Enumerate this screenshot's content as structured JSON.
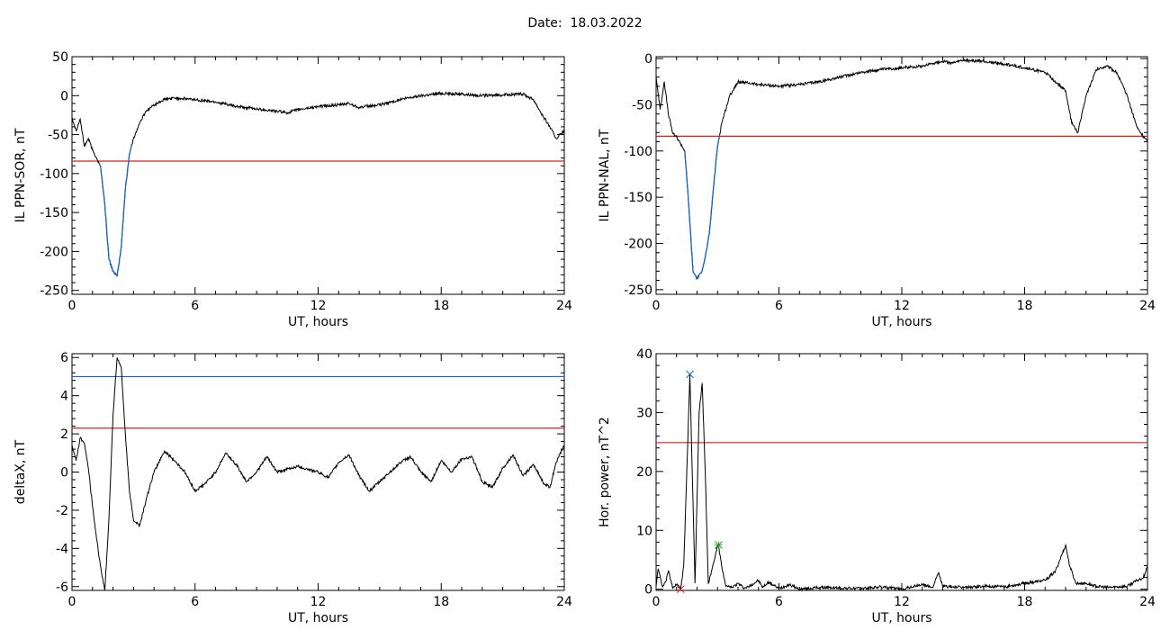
{
  "page": {
    "date_label": "Date:  18.03.2022"
  },
  "colors": {
    "data": "#000000",
    "highlight": "#1565c0",
    "threshold_red": "#e0201b",
    "threshold_blue": "#1565c0",
    "peak_green": "#22a022"
  },
  "chart_data": [
    {
      "type": "line",
      "id": "sor",
      "xlabel": "UT, hours",
      "ylabel": "IL PPN-SOR, nT",
      "xlim": [
        0,
        24
      ],
      "ylim": [
        -255,
        50
      ],
      "xticks": [
        0,
        6,
        12,
        18,
        24
      ],
      "yticks": [
        -250,
        -200,
        -150,
        -100,
        -50,
        0,
        50
      ],
      "thresholds": [
        {
          "y": -84,
          "color": "red"
        }
      ],
      "highlight_range": [
        1.3,
        2.9
      ],
      "series": [
        {
          "x": [
            0,
            0.2,
            0.4,
            0.6,
            0.8,
            1.0,
            1.2,
            1.4,
            1.6,
            1.8,
            2.0,
            2.2,
            2.4,
            2.6,
            2.8,
            3.0,
            3.3,
            3.6,
            4.0,
            4.5,
            5.0,
            6.0,
            7.0,
            8.0,
            9.0,
            10.0,
            10.5,
            11.0,
            12.0,
            13.0,
            13.5,
            14.0,
            15.0,
            16.0,
            17.0,
            18.0,
            19.0,
            20.0,
            21.0,
            22.0,
            22.5,
            23.0,
            23.3,
            23.6,
            24.0
          ],
          "y": [
            -28,
            -45,
            -30,
            -65,
            -55,
            -70,
            -80,
            -92,
            -140,
            -210,
            -225,
            -232,
            -195,
            -120,
            -75,
            -55,
            -35,
            -20,
            -12,
            -5,
            -3,
            -5,
            -8,
            -14,
            -17,
            -20,
            -22,
            -18,
            -14,
            -12,
            -10,
            -15,
            -12,
            -5,
            0,
            3,
            2,
            0,
            1,
            2,
            -5,
            -28,
            -40,
            -55,
            -45
          ]
        }
      ]
    },
    {
      "type": "line",
      "id": "nal",
      "xlabel": "UT, hours",
      "ylabel": "IL PPN-NAL, nT",
      "xlim": [
        0,
        24
      ],
      "ylim": [
        -255,
        2
      ],
      "xticks": [
        0,
        6,
        12,
        18,
        24
      ],
      "yticks": [
        -250,
        -200,
        -150,
        -100,
        -50,
        0
      ],
      "thresholds": [
        {
          "y": -84,
          "color": "red"
        }
      ],
      "highlight_range": [
        1.4,
        3.1
      ],
      "series": [
        {
          "x": [
            0,
            0.2,
            0.4,
            0.6,
            0.8,
            1.0,
            1.2,
            1.4,
            1.6,
            1.8,
            2.0,
            2.2,
            2.4,
            2.6,
            2.8,
            3.0,
            3.2,
            3.6,
            4.0,
            5.0,
            6.0,
            7.0,
            8.0,
            9.0,
            10.0,
            11.0,
            12.0,
            13.0,
            13.5,
            14.0,
            14.5,
            15.0,
            16.0,
            17.0,
            18.0,
            19.0,
            20.0,
            20.3,
            20.6,
            21.0,
            21.5,
            22.0,
            22.5,
            23.0,
            23.5,
            24.0
          ],
          "y": [
            -20,
            -55,
            -25,
            -60,
            -80,
            -85,
            -92,
            -100,
            -160,
            -230,
            -238,
            -232,
            -215,
            -190,
            -140,
            -95,
            -70,
            -40,
            -25,
            -28,
            -30,
            -28,
            -25,
            -20,
            -15,
            -12,
            -10,
            -8,
            -5,
            -3,
            -5,
            -2,
            -3,
            -6,
            -10,
            -15,
            -35,
            -70,
            -80,
            -40,
            -12,
            -8,
            -15,
            -40,
            -75,
            -90
          ]
        }
      ]
    },
    {
      "type": "line",
      "id": "deltax",
      "xlabel": "UT, hours",
      "ylabel": "deltaX, nT",
      "xlim": [
        0,
        24
      ],
      "ylim": [
        -6.2,
        6.2
      ],
      "xticks": [
        0,
        6,
        12,
        18,
        24
      ],
      "yticks": [
        -6,
        -4,
        -2,
        0,
        2,
        4,
        6
      ],
      "thresholds": [
        {
          "y": 5.0,
          "color": "blue"
        },
        {
          "y": 2.3,
          "color": "red"
        }
      ],
      "series": [
        {
          "x": [
            0,
            0.2,
            0.4,
            0.6,
            0.8,
            1.0,
            1.2,
            1.4,
            1.6,
            1.8,
            2.0,
            2.2,
            2.4,
            2.6,
            2.8,
            3.0,
            3.3,
            3.6,
            4.0,
            4.5,
            5.0,
            5.5,
            6.0,
            6.5,
            7.0,
            7.5,
            8.0,
            8.5,
            9.0,
            9.5,
            10.0,
            11.0,
            12.0,
            12.5,
            13.0,
            13.5,
            14.0,
            14.5,
            15.0,
            16.0,
            16.5,
            17.0,
            17.5,
            18.0,
            18.5,
            19.0,
            19.5,
            20.0,
            20.5,
            21.0,
            21.5,
            22.0,
            22.5,
            23.0,
            23.3,
            23.6,
            24.0
          ],
          "y": [
            1.4,
            0.6,
            1.8,
            1.5,
            0.2,
            -1.8,
            -3.5,
            -5.0,
            -6.2,
            -2.5,
            3.0,
            6.0,
            5.5,
            2.0,
            -1.0,
            -2.5,
            -2.8,
            -1.5,
            0.0,
            1.1,
            0.6,
            0.0,
            -1.0,
            -0.6,
            0.0,
            1.0,
            0.4,
            -0.5,
            0.0,
            0.8,
            0.0,
            0.3,
            0.0,
            -0.3,
            0.5,
            0.9,
            -0.2,
            -1.0,
            -0.5,
            0.5,
            0.8,
            0.0,
            -0.5,
            0.6,
            0.0,
            0.7,
            0.8,
            -0.5,
            -0.8,
            0.2,
            0.9,
            -0.2,
            0.4,
            -0.6,
            -0.8,
            0.5,
            1.4
          ]
        }
      ]
    },
    {
      "type": "line",
      "id": "power",
      "xlabel": "UT, hours",
      "ylabel": "Hor. power, nT^2",
      "xlim": [
        0,
        24
      ],
      "ylim": [
        -0.2,
        40
      ],
      "xticks": [
        0,
        6,
        12,
        18,
        24
      ],
      "yticks": [
        0,
        10,
        20,
        30,
        40
      ],
      "thresholds": [
        {
          "y": 24.9,
          "color": "red"
        }
      ],
      "markers": [
        {
          "x": 1.65,
          "y": 36.5,
          "symbol": "x",
          "color": "blue"
        },
        {
          "x": 3.05,
          "y": 7.5,
          "symbol": "star",
          "color": "green"
        },
        {
          "x": 1.2,
          "y": 0.0,
          "symbol": "x",
          "color": "red"
        }
      ],
      "series": [
        {
          "x": [
            0,
            0.1,
            0.3,
            0.5,
            0.6,
            0.8,
            1.0,
            1.2,
            1.35,
            1.5,
            1.65,
            1.8,
            1.9,
            2.1,
            2.25,
            2.4,
            2.55,
            2.7,
            2.85,
            3.0,
            3.05,
            3.2,
            3.4,
            3.7,
            4.0,
            4.3,
            4.5,
            5.0,
            5.2,
            5.5,
            6.0,
            6.5,
            7.0,
            8.0,
            9.0,
            10.0,
            11.0,
            12.0,
            13.0,
            13.5,
            13.8,
            14.0,
            15.0,
            16.0,
            17.0,
            18.0,
            19.0,
            19.5,
            20.0,
            20.2,
            20.5,
            21.0,
            21.5,
            22.0,
            23.0,
            23.5,
            23.8,
            24.0
          ],
          "y": [
            0.5,
            3.5,
            0.5,
            1.5,
            3.2,
            0.3,
            0.8,
            0.0,
            4.0,
            20.0,
            36.5,
            15.0,
            1.0,
            30.0,
            35.0,
            20.0,
            1.0,
            3.0,
            5.0,
            7.5,
            7.2,
            4.0,
            0.5,
            0.3,
            1.0,
            0.2,
            0.4,
            1.5,
            0.3,
            1.2,
            0.1,
            0.8,
            0.0,
            0.3,
            0.2,
            0.1,
            0.4,
            0.0,
            0.8,
            0.3,
            2.8,
            0.5,
            0.3,
            0.5,
            0.4,
            1.0,
            1.5,
            3.0,
            7.5,
            4.0,
            1.0,
            1.0,
            0.5,
            0.3,
            0.5,
            1.5,
            2.0,
            4.0
          ]
        }
      ]
    }
  ]
}
